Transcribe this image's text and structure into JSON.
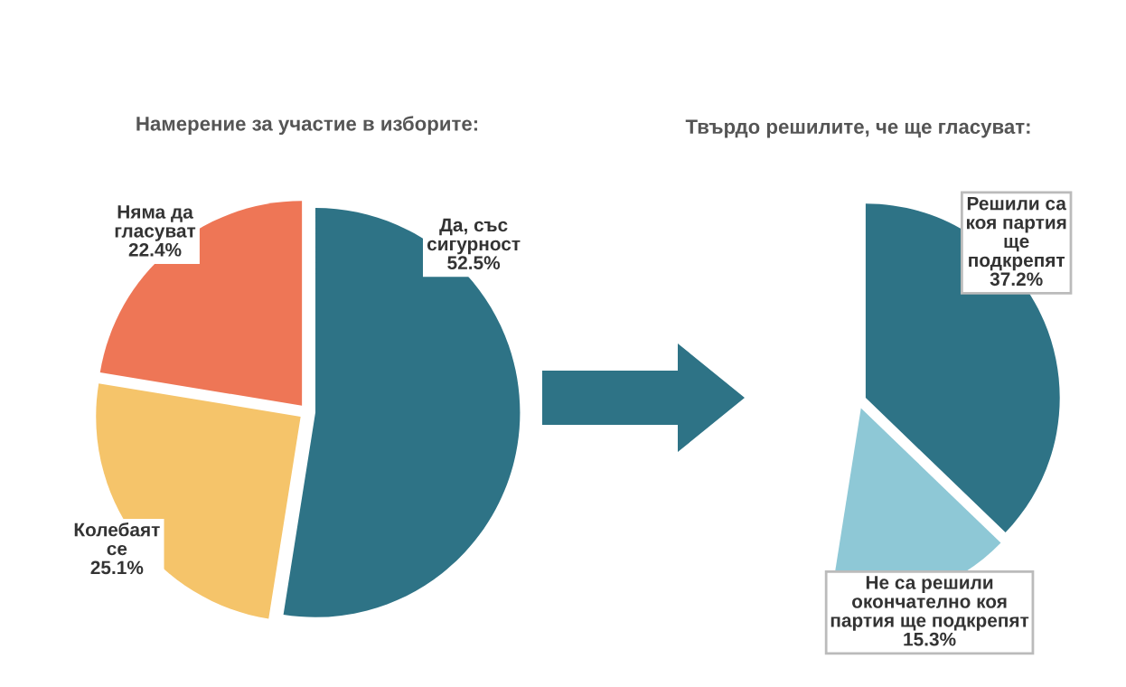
{
  "chart_data": [
    {
      "type": "pie",
      "title": "Намерение за участие в изборите:",
      "categories": [
        "Да, със\nсигурност",
        "Колебаят\nсе",
        "Няма да\nгласуват"
      ],
      "values": [
        52.5,
        25.1,
        22.4
      ],
      "colors": [
        "#2e7386",
        "#f5c46a",
        "#ee7656"
      ],
      "value_labels": [
        "52.5%",
        "25.1%",
        "22.4%"
      ]
    },
    {
      "type": "pie",
      "title": "Твърдо решилите, че ще гласуват:",
      "categories": [
        "Решили са\nкоя партия\nще\nподкрепят",
        "Не са решили\nокончателно коя\nпартия ще подкрепят"
      ],
      "values": [
        37.2,
        15.3
      ],
      "colors": [
        "#2e7386",
        "#8ec8d6"
      ],
      "value_labels": [
        "37.2%",
        "15.3%"
      ]
    }
  ]
}
